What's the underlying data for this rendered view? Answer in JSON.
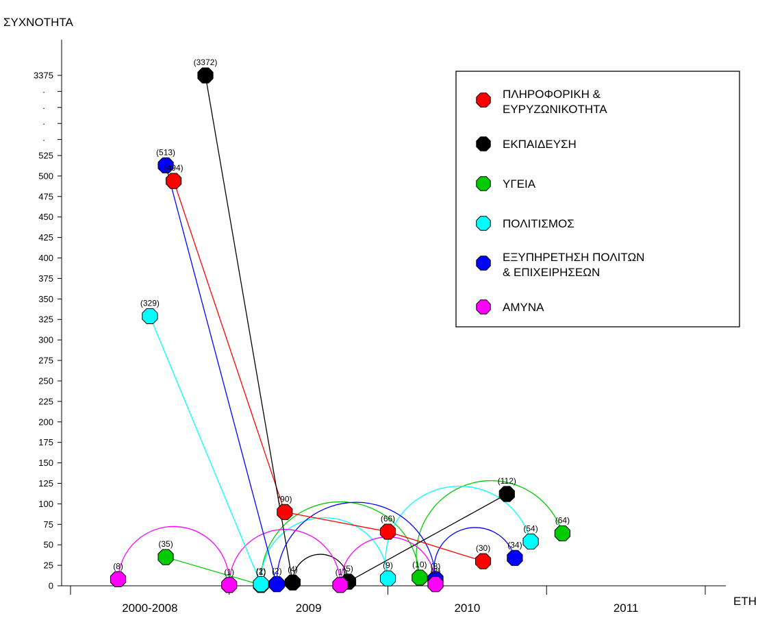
{
  "chart_data": {
    "type": "line",
    "ylabel": "ΣΥΧΝΟΤΗΤΑ",
    "xlabel": "ΕΤΗ",
    "categories": [
      "2000-2008",
      "2009",
      "2010",
      "2011"
    ],
    "y_ticks": [
      "0",
      "25",
      "50",
      "75",
      "100",
      "125",
      "150",
      "175",
      "200",
      "225",
      "250",
      "275",
      "300",
      "325",
      "350",
      "375",
      "400",
      "425",
      "450",
      "475",
      "500",
      "525",
      "3375"
    ],
    "y_break": true,
    "y_break_marks": [
      ".",
      ".",
      ".",
      "."
    ],
    "legend_position": "top-right",
    "series": [
      {
        "name": "ΠΛΗΡΟΦΟΡΙΚΗ & ΕΥΡΥΖΩΝΙΚΟΤΗΤΑ",
        "name_lines": [
          "ΠΛΗΡΟΦΟΡΙΚΗ &",
          "ΕΥΡΥΖΩΝΙΚΟΤΗΤΑ"
        ],
        "color": "#ff0000",
        "x": [
          0.65,
          1.35,
          2.0,
          2.6
        ],
        "values": [
          494,
          90,
          66,
          30
        ],
        "labels": [
          "(494)",
          "(90)",
          "(66)",
          "(30)"
        ],
        "arcs": []
      },
      {
        "name": "ΕΚΠΑΙΔΕΥΣΗ",
        "name_lines": [
          "ΕΚΠΑΙΔΕΥΣΗ"
        ],
        "color": "#000000",
        "x": [
          0.85,
          1.4,
          1.75,
          2.75
        ],
        "values": [
          3372,
          4,
          5,
          112
        ],
        "labels": [
          "(3372)",
          "(4)",
          "(5)",
          "(112)"
        ],
        "arcs": [
          [
            1,
            2
          ]
        ]
      },
      {
        "name": "ΥΓΕΙΑ",
        "name_lines": [
          "ΥΓΕΙΑ"
        ],
        "color": "#00cc00",
        "x": [
          0.6,
          1.2,
          2.2,
          3.1
        ],
        "values": [
          35,
          1,
          10,
          64
        ],
        "labels": [
          "(35)",
          "(1)",
          "(10)",
          "(64)"
        ],
        "arcs": [
          [
            1,
            2
          ],
          [
            2,
            3
          ]
        ]
      },
      {
        "name": "ΠΟΛΙΤΙΣΜΟΣ",
        "name_lines": [
          "ΠΟΛΙΤΙΣΜΟΣ"
        ],
        "color": "#00ffff",
        "x": [
          0.5,
          1.2,
          2.0,
          2.9
        ],
        "values": [
          329,
          2,
          9,
          54
        ],
        "labels": [
          "(329)",
          "(2)",
          "(9)",
          "(54)"
        ],
        "arcs": [
          [
            1,
            2
          ],
          [
            2,
            3
          ]
        ]
      },
      {
        "name": "ΕΞΥΠΗΡΕΤΗΣΗ ΠΟΛΙΤΩΝ & ΕΠΙΧΕΙΡΗΣΕΩΝ",
        "name_lines": [
          "ΕΞΥΠΗΡΕΤΗΣΗ ΠΟΛΙΤΩΝ",
          "& ΕΠΙΧΕΙΡΗΣΕΩΝ"
        ],
        "color": "#0000ff",
        "x": [
          0.6,
          1.3,
          2.3,
          2.8
        ],
        "values": [
          513,
          2,
          8,
          34
        ],
        "labels": [
          "(513)",
          "(2)",
          "(8)",
          "(34)"
        ],
        "arcs": [
          [
            1,
            2
          ],
          [
            2,
            3
          ]
        ]
      },
      {
        "name": "ΑΜΥΝΑ",
        "name_lines": [
          "ΑΜΥΝΑ"
        ],
        "color": "#ff00ff",
        "x": [
          0.3,
          1.0,
          1.7,
          2.3
        ],
        "values": [
          8,
          1,
          1,
          2
        ],
        "labels": [
          "(8)",
          "(1)",
          "(1)",
          "(2)"
        ],
        "arcs": [
          [
            0,
            1
          ],
          [
            1,
            2
          ],
          [
            2,
            3
          ]
        ]
      }
    ]
  }
}
